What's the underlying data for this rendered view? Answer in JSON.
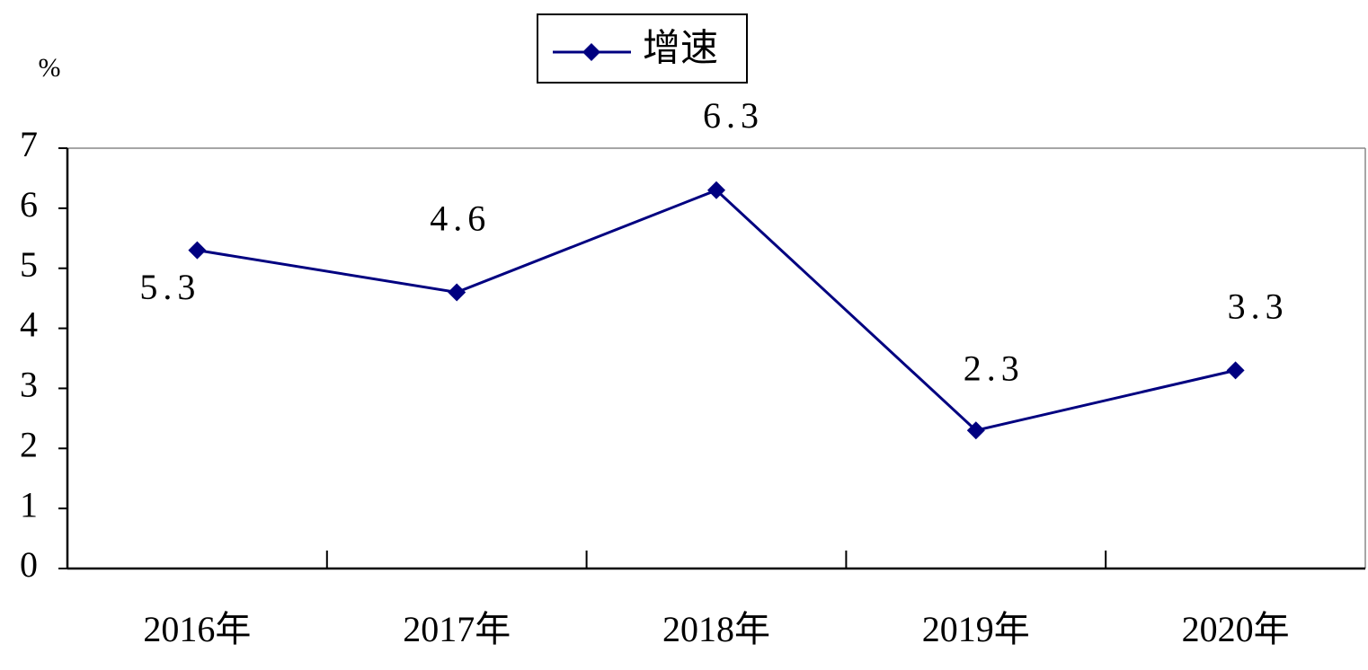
{
  "chart_data": {
    "type": "line",
    "y_label": "%",
    "categories": [
      "2016年",
      "2017年",
      "2018年",
      "2019年",
      "2020年"
    ],
    "series": [
      {
        "name": "增速",
        "color": "#000080",
        "values": [
          5.3,
          4.6,
          6.3,
          2.3,
          3.3
        ]
      }
    ],
    "ylim": [
      0,
      7
    ],
    "yticks": [
      0,
      1,
      2,
      3,
      4,
      5,
      6,
      7
    ],
    "legend": "top"
  }
}
